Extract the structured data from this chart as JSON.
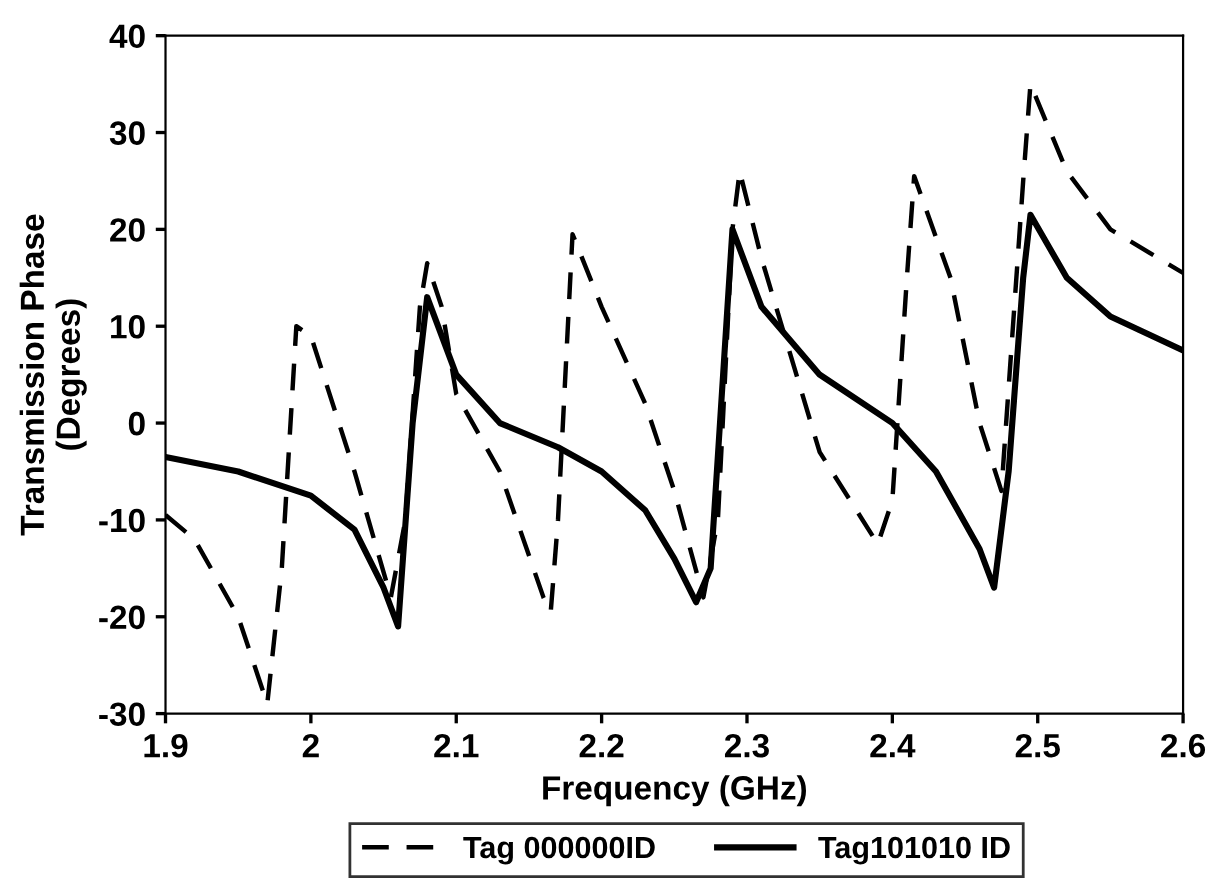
{
  "chart_data": {
    "type": "line",
    "xlabel": "Frequency (GHz)",
    "ylabel": "Transmission Phase\n(Degrees)",
    "xlim": [
      1.9,
      2.6
    ],
    "ylim": [
      -30,
      40
    ],
    "xticks": [
      {
        "value": 1.9,
        "label": "1.9"
      },
      {
        "value": 2.0,
        "label": "2"
      },
      {
        "value": 2.1,
        "label": "2.1"
      },
      {
        "value": 2.2,
        "label": "2.2"
      },
      {
        "value": 2.3,
        "label": "2.3"
      },
      {
        "value": 2.4,
        "label": "2.4"
      },
      {
        "value": 2.5,
        "label": "2.5"
      },
      {
        "value": 2.6,
        "label": "2.6"
      }
    ],
    "yticks": [
      -30,
      -20,
      -10,
      0,
      10,
      20,
      30,
      40
    ],
    "grid": false,
    "legend": "bottom",
    "marker": "none",
    "series": [
      {
        "name": "Tag 000000ID",
        "color": "#000000",
        "line_style": "dashed",
        "x": [
          1.9,
          1.92,
          1.95,
          1.97,
          1.98,
          1.99,
          2.0,
          2.03,
          2.055,
          2.065,
          2.075,
          2.08,
          2.09,
          2.1,
          2.13,
          2.16,
          2.165,
          2.17,
          2.18,
          2.2,
          2.23,
          2.25,
          2.27,
          2.28,
          2.29,
          2.295,
          2.31,
          2.35,
          2.39,
          2.4,
          2.41,
          2.415,
          2.44,
          2.46,
          2.475,
          2.49,
          2.495,
          2.52,
          2.55,
          2.6
        ],
        "values": [
          -9.5,
          -12,
          -20,
          -29,
          -15,
          10,
          9,
          -5,
          -18,
          -10,
          12,
          16.5,
          12,
          3,
          -5,
          -18,
          -19.5,
          -10,
          19.5,
          12,
          2,
          -7,
          -18,
          -10,
          20,
          26,
          17,
          -3,
          -12.5,
          -8,
          15,
          25.5,
          15,
          0,
          -7,
          25,
          35,
          26,
          20,
          15.5
        ]
      },
      {
        "name": "Tag101010 ID",
        "color": "#000000",
        "line_style": "solid",
        "x": [
          1.9,
          1.95,
          2.0,
          2.03,
          2.05,
          2.06,
          2.07,
          2.08,
          2.1,
          2.13,
          2.17,
          2.2,
          2.23,
          2.25,
          2.265,
          2.275,
          2.29,
          2.31,
          2.35,
          2.4,
          2.43,
          2.46,
          2.47,
          2.48,
          2.49,
          2.495,
          2.52,
          2.55,
          2.6
        ],
        "values": [
          -3.5,
          -5,
          -7.5,
          -11,
          -17,
          -21,
          0,
          13,
          5,
          0,
          -2.5,
          -5,
          -9,
          -14,
          -18.5,
          -15,
          20,
          12,
          5,
          0,
          -5,
          -13,
          -17,
          -5,
          15,
          21.5,
          15,
          11,
          7.5
        ]
      }
    ]
  }
}
